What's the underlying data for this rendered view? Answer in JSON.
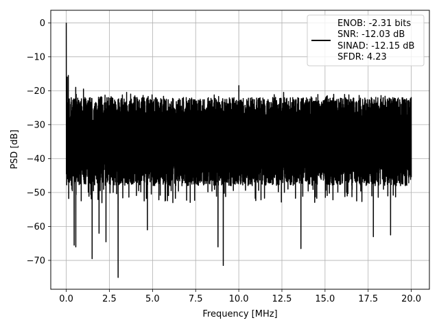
{
  "chart_data": {
    "type": "line",
    "title": "",
    "xlabel": "Frequency [MHz]",
    "ylabel": "PSD [dB]",
    "xlim": [
      -0.9,
      21.05
    ],
    "ylim": [
      -78.5,
      3.7
    ],
    "xticks": [
      0.0,
      2.5,
      5.0,
      7.5,
      10.0,
      12.5,
      15.0,
      17.5,
      20.0
    ],
    "xtick_labels": [
      "0.0",
      "2.5",
      "5.0",
      "7.5",
      "10.0",
      "12.5",
      "15.0",
      "17.5",
      "20.0"
    ],
    "yticks": [
      0,
      -10,
      -20,
      -30,
      -40,
      -50,
      -60,
      -70
    ],
    "ytick_labels": [
      "0",
      "−10",
      "−20",
      "−30",
      "−40",
      "−50",
      "−60",
      "−70"
    ],
    "grid": true,
    "legend_position": "top-right",
    "legend_entries": [
      "ENOB: -2.31 bits",
      "SNR: -12.03 dB",
      "SINAD: -12.15 dB",
      "SFDR: 4.23"
    ],
    "series": [
      {
        "color": "#000000",
        "noise_floor_db": -35,
        "x_range": [
          0.0,
          20.0
        ],
        "peaks": [
          {
            "x": 0.0,
            "y": 0
          },
          {
            "x": 0.05,
            "y": -16
          },
          {
            "x": 0.12,
            "y": -15.5
          },
          {
            "x": 0.55,
            "y": -19
          },
          {
            "x": 1.0,
            "y": -19.5
          },
          {
            "x": 3.5,
            "y": -20.5
          },
          {
            "x": 10.0,
            "y": -18.5
          },
          {
            "x": 12.6,
            "y": -20.5
          },
          {
            "x": 20.0,
            "y": -22
          }
        ],
        "troughs": [
          {
            "x": 0.35,
            "y": -49.5
          },
          {
            "x": 0.45,
            "y": -65.5
          },
          {
            "x": 0.55,
            "y": -66
          },
          {
            "x": 1.5,
            "y": -69.5
          },
          {
            "x": 1.9,
            "y": -62
          },
          {
            "x": 2.3,
            "y": -64.5
          },
          {
            "x": 3.0,
            "y": -75
          },
          {
            "x": 4.7,
            "y": -61
          },
          {
            "x": 8.8,
            "y": -66
          },
          {
            "x": 9.1,
            "y": -71.5
          },
          {
            "x": 13.6,
            "y": -66.5
          },
          {
            "x": 17.8,
            "y": -63
          },
          {
            "x": 18.8,
            "y": -62.5
          }
        ]
      }
    ]
  }
}
